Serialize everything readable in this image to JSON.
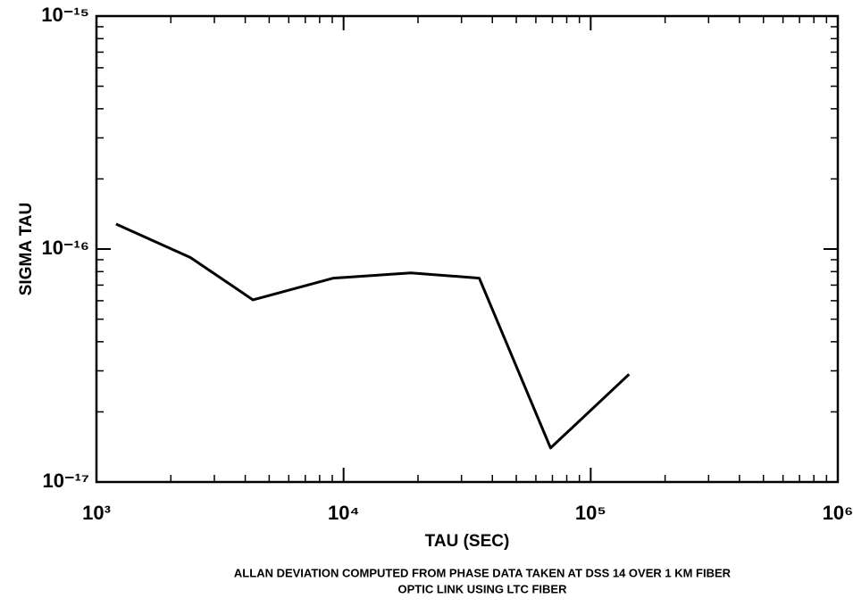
{
  "chart_data": {
    "type": "line",
    "x_label": "TAU (SEC)",
    "y_label": "SIGMA TAU",
    "caption": [
      "ALLAN DEVIATION COMPUTED FROM PHASE DATA TAKEN AT DSS 14 OVER 1 KM FIBER",
      "OPTIC LINK USING LTC FIBER"
    ],
    "x": [
      1200,
      2400,
      4300,
      9100,
      18700,
      35400,
      68800,
      143000
    ],
    "series": [
      {
        "color": "#000000",
        "values": [
          1.28e-16,
          9.2e-17,
          6.05e-17,
          7.5e-17,
          7.9e-17,
          7.5e-17,
          1.4e-17,
          2.9e-17
        ]
      }
    ],
    "xlog": true,
    "ylog": true,
    "xlim": [
      1000,
      1000000
    ],
    "ylim": [
      1e-17,
      1e-15
    ],
    "xticks": [
      {
        "value": 1000,
        "label": "10³"
      },
      {
        "value": 10000,
        "label": "10⁴"
      },
      {
        "value": 100000,
        "label": "10⁵"
      },
      {
        "value": 1000000,
        "label": "10⁶"
      }
    ],
    "yticks": [
      {
        "value": 1e-17,
        "label": "10⁻¹⁷"
      },
      {
        "value": 1e-16,
        "label": "10⁻¹⁶"
      },
      {
        "value": 1e-15,
        "label": "10⁻¹⁵"
      }
    ],
    "grid": false
  }
}
